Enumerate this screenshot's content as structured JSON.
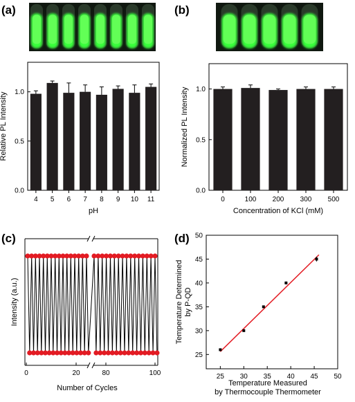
{
  "panels": {
    "a": {
      "label": "(a)"
    },
    "b": {
      "label": "(b)"
    },
    "c": {
      "label": "(c)"
    },
    "d": {
      "label": "(d)"
    }
  },
  "colors": {
    "bar": "#231f20",
    "red_dot": "#e31b23",
    "fit_line": "#e31b23",
    "tube_glow": "#39ff3a",
    "photo_bg": "#101810"
  },
  "chart_data": [
    {
      "id": "a",
      "type": "bar",
      "categories": [
        "4",
        "5",
        "6",
        "7",
        "8",
        "9",
        "10",
        "11"
      ],
      "values": [
        0.98,
        1.09,
        0.99,
        1.0,
        0.97,
        1.03,
        0.99,
        1.05
      ],
      "errors": [
        0.03,
        0.02,
        0.1,
        0.07,
        0.08,
        0.03,
        0.08,
        0.03
      ],
      "xlabel": "pH",
      "ylabel": "Relative PL Intensity",
      "ylim": [
        0,
        1.3
      ],
      "yticks": [
        "0.0",
        "0.5",
        "1.0"
      ],
      "photo": {
        "tubes": 8
      }
    },
    {
      "id": "b",
      "type": "bar",
      "categories": [
        "0",
        "100",
        "200",
        "300",
        "500"
      ],
      "values": [
        1.0,
        1.01,
        0.99,
        1.0,
        1.0
      ],
      "errors": [
        0.02,
        0.03,
        0.01,
        0.02,
        0.02
      ],
      "xlabel": "Concentration of KCl (mM)",
      "ylabel": "Normalized PL Intensity",
      "ylim": [
        0,
        1.25
      ],
      "yticks": [
        "0.0",
        "0.5",
        "1.0"
      ],
      "photo": {
        "tubes": 5
      }
    },
    {
      "id": "c",
      "type": "line",
      "xlabel": "Number of Cycles",
      "ylabel": "Intensity (a.u.)",
      "xticks": [
        "0",
        "20",
        "80",
        "100"
      ],
      "segments": [
        {
          "x_start": 0,
          "x_end": 30,
          "points": 16
        },
        {
          "x_start": 70,
          "x_end": 100,
          "points": 16
        }
      ],
      "levels": {
        "high": 1,
        "low": 0
      },
      "axis_break": true
    },
    {
      "id": "d",
      "type": "scatter",
      "x": [
        25,
        30,
        34.2,
        39,
        45.5
      ],
      "y": [
        26,
        30,
        35,
        40,
        45
      ],
      "yerr": [
        0.2,
        0.2,
        0.2,
        0.3,
        0.5
      ],
      "fit": {
        "x": [
          25,
          46
        ],
        "y": [
          25.6,
          45.9
        ]
      },
      "xlabel_line1": "Temperature Measured",
      "xlabel_line2": "by Thermocouple Thermometer",
      "ylabel_line1": "Temperature  Determined",
      "ylabel_line2": "by P-QD",
      "xlim": [
        22,
        50
      ],
      "ylim": [
        22,
        50
      ],
      "xticks": [
        "25",
        "30",
        "35",
        "40",
        "45",
        "50"
      ],
      "yticks": [
        "25",
        "30",
        "35",
        "40",
        "45",
        "50"
      ]
    }
  ]
}
